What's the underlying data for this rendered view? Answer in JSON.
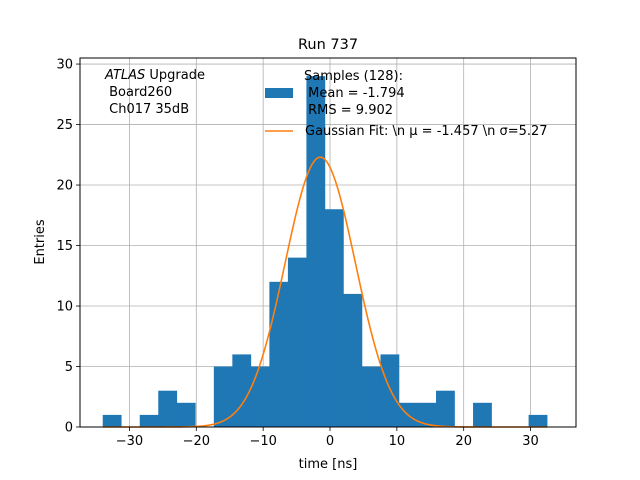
{
  "chart_data": {
    "type": "bar",
    "title": "Run 737",
    "xlabel": "time [ns]",
    "ylabel": "Entries",
    "xlim": [
      -37.4,
      36.8
    ],
    "ylim": [
      0,
      30.5
    ],
    "x_ticks": [
      -30,
      -20,
      -10,
      0,
      10,
      20,
      30
    ],
    "y_ticks": [
      0,
      5,
      10,
      15,
      20,
      25,
      30
    ],
    "grid": true,
    "annotation": {
      "experiment": "ATLAS",
      "experiment_suffix": " Upgrade",
      "line2": " Board260",
      "line3": " Ch017 35dB"
    },
    "histogram": {
      "bin_width": 2.77,
      "bin_start": -34.0,
      "counts": [
        1,
        0,
        1,
        3,
        2,
        0,
        5,
        6,
        5,
        12,
        14,
        29,
        18,
        11,
        5,
        6,
        2,
        2,
        3,
        0,
        2,
        0,
        0,
        1
      ],
      "color": "#1f77b4"
    },
    "fit": {
      "mu": -1.457,
      "sigma": 5.27,
      "amplitude": 22.3,
      "color": "#ff7f0e"
    },
    "legend": {
      "placement": "top-center",
      "entries": [
        {
          "kind": "patch",
          "color": "#1f77b4",
          "lines": [
            "Samples (128):",
            " Mean = -1.794",
            " RMS = 9.902"
          ]
        },
        {
          "kind": "line",
          "color": "#ff7f0e",
          "lines": [
            "Gaussian Fit: \\n μ = -1.457 \\n σ=5.27"
          ]
        }
      ]
    }
  }
}
